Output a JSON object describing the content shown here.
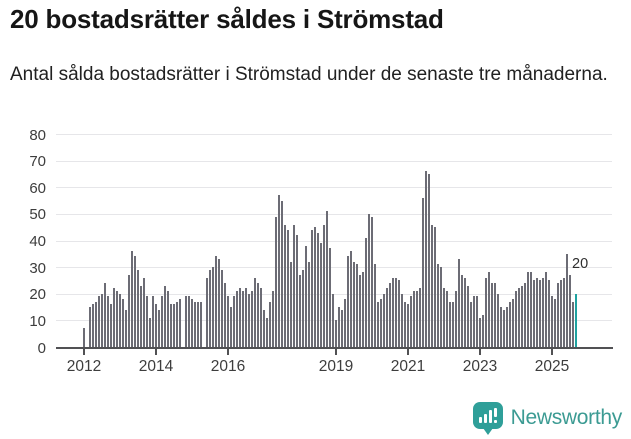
{
  "header": {
    "title": "20 bostadsrätter såldes i Strömstad",
    "subtitle": "Antal sålda bostadsrätter i Strömstad under de senaste tre månaderna."
  },
  "footer": {
    "brand": "Newsworthy",
    "brand_color": "#3c9b93"
  },
  "colors": {
    "bar": "#6c6c75",
    "highlight_bar": "#1fa2a0",
    "gridline": "#e6e6e9",
    "axis": "#515154",
    "text": "#3d3d3d"
  },
  "chart_data": {
    "type": "bar",
    "title": "20 bostadsrätter såldes i Strömstad",
    "subtitle": "Antal sålda bostadsrätter i Strömstad under de senaste tre månaderna.",
    "xlabel": "",
    "ylabel": "",
    "ylim": [
      0,
      80
    ],
    "yticks": [
      0,
      10,
      20,
      30,
      40,
      50,
      60,
      70,
      80
    ],
    "grid": "horizontal",
    "frequency": "monthly",
    "start_month": "2012-01",
    "end_month": "2025-09",
    "unit": "sålda bostadsrätter per rullande tremånadersperiod",
    "values": [
      7,
      0,
      15,
      16,
      17,
      19,
      20,
      24,
      19,
      16,
      22,
      21,
      20,
      18,
      14,
      27,
      36,
      34,
      29,
      23,
      26,
      19,
      11,
      19,
      16,
      14,
      19,
      23,
      21,
      16,
      16,
      17,
      18,
      0,
      19,
      19,
      18,
      17,
      17,
      17,
      0,
      26,
      29,
      30,
      34,
      33,
      29,
      24,
      19,
      15,
      19,
      21,
      22,
      21,
      22,
      20,
      21,
      26,
      24,
      22,
      14,
      11,
      17,
      21,
      49,
      57,
      55,
      46,
      44,
      32,
      46,
      42,
      27,
      29,
      38,
      32,
      44,
      45,
      43,
      39,
      46,
      51,
      37,
      20,
      10,
      15,
      14,
      18,
      34,
      36,
      32,
      31,
      27,
      28,
      41,
      50,
      49,
      31,
      17,
      18,
      20,
      22,
      24,
      26,
      26,
      25,
      20,
      17,
      16,
      19,
      21,
      21,
      22,
      56,
      66,
      65,
      46,
      45,
      31,
      30,
      22,
      21,
      17,
      17,
      21,
      33,
      27,
      26,
      23,
      17,
      19,
      19,
      11,
      12,
      26,
      28,
      24,
      24,
      20,
      15,
      14,
      15,
      17,
      18,
      21,
      22,
      23,
      24,
      28,
      28,
      25,
      26,
      25,
      26,
      28,
      25,
      19,
      18,
      24,
      25,
      26,
      35,
      27,
      17,
      20
    ],
    "xticks": [
      {
        "label": "2012",
        "month_index": 0
      },
      {
        "label": "2014",
        "month_index": 24
      },
      {
        "label": "2016",
        "month_index": 48
      },
      {
        "label": "2019",
        "month_index": 84
      },
      {
        "label": "2021",
        "month_index": 108
      },
      {
        "label": "2023",
        "month_index": 132
      },
      {
        "label": "2025",
        "month_index": 156
      }
    ],
    "highlight": {
      "index": 164,
      "value": 20,
      "color": "#1fa2a0"
    },
    "annotation": {
      "text": "20",
      "refers_to": "last bar"
    },
    "legend": "none"
  }
}
